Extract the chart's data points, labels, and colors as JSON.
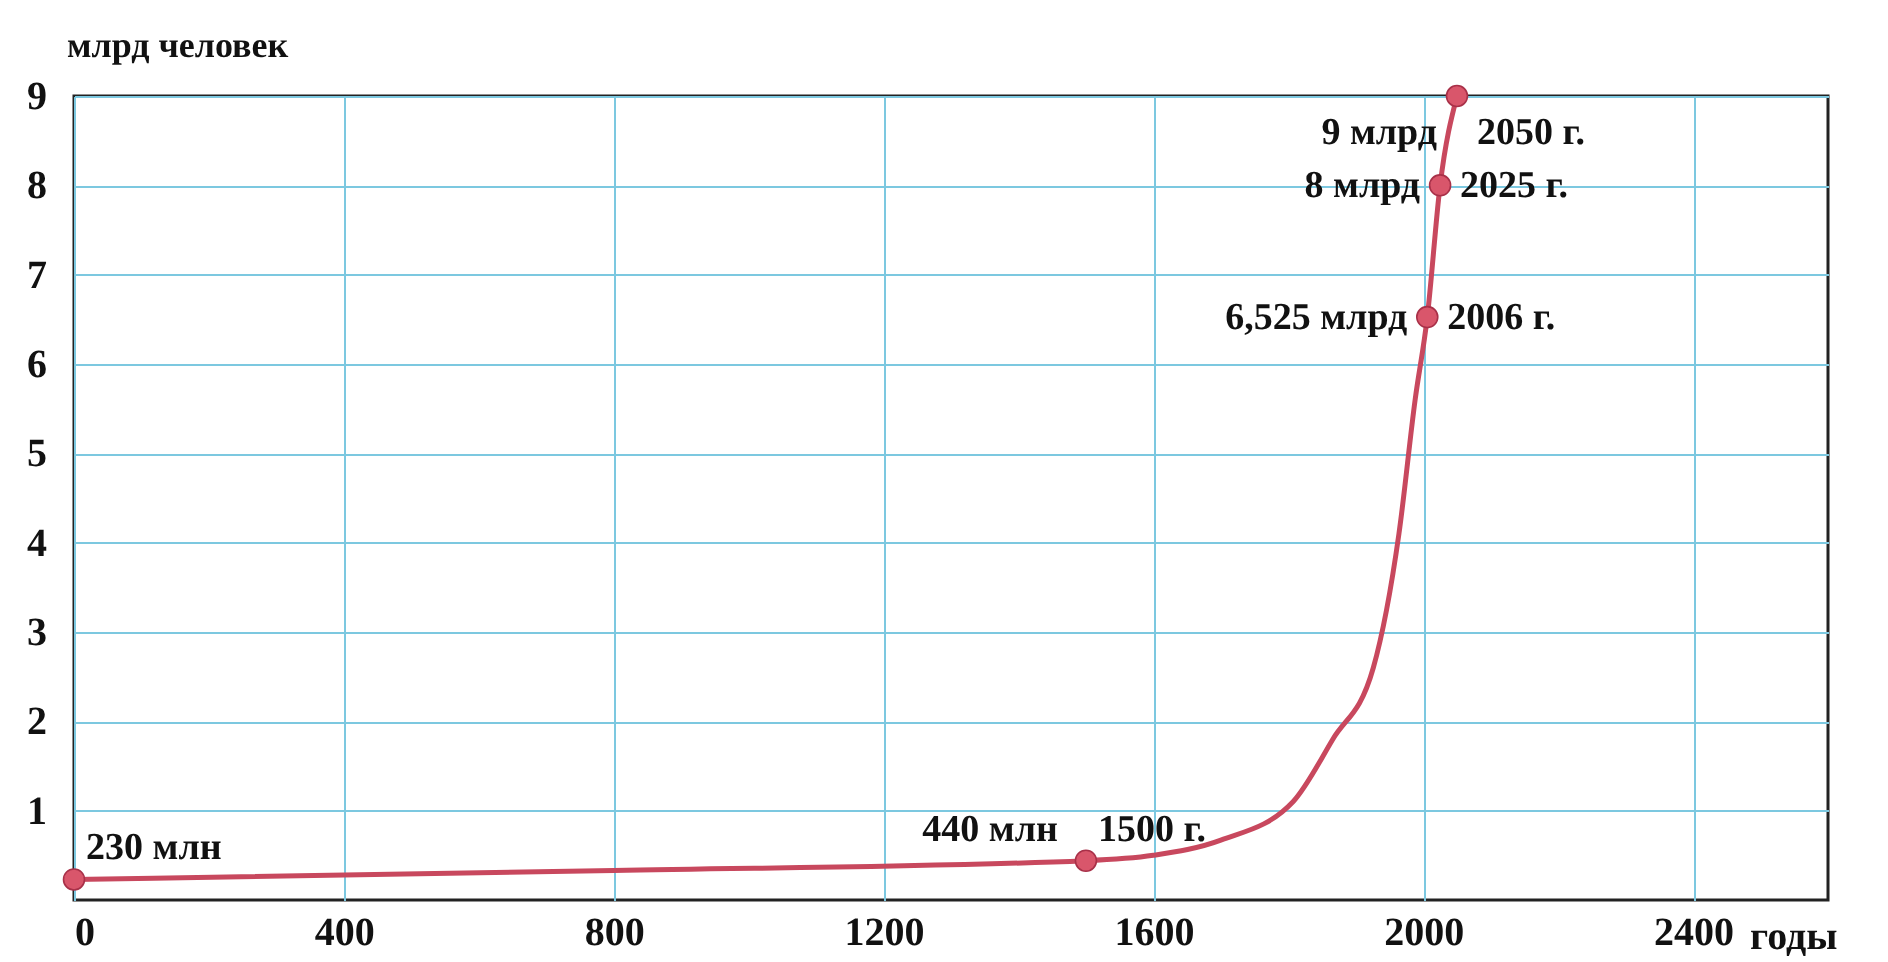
{
  "chart_data": {
    "type": "line",
    "xlabel": "годы",
    "ylabel": "млрд человек",
    "xlim": [
      0,
      2600
    ],
    "xticks": [
      0,
      400,
      800,
      1200,
      1600,
      2000,
      2400
    ],
    "ylim": [
      0,
      9
    ],
    "yticks": [
      1,
      2,
      3,
      4,
      5,
      6,
      7,
      8,
      9
    ],
    "grid": true,
    "series": [
      {
        "color": "#c8485e",
        "x": [
          0,
          800,
          1500,
          1600,
          1700,
          1807,
          1866,
          1926,
          1964,
          1988,
          2006,
          2025,
          2050
        ],
        "values": [
          0.23,
          0.33,
          0.44,
          0.5,
          0.67,
          1.1,
          1.8,
          2.6,
          4.1,
          5.6,
          6.525,
          8,
          9
        ]
      },
      {
        "type": "scatter",
        "marker": "circle",
        "color": "#d9566b",
        "x": [
          0,
          1500,
          2006,
          2025,
          2050
        ],
        "values": [
          0.23,
          0.44,
          6.525,
          8,
          9
        ]
      }
    ],
    "annotations": [
      {
        "text": "230 млн",
        "x": 0,
        "y": 0.23
      },
      {
        "text": "440 млн",
        "x": 1500,
        "y": 0.44
      },
      {
        "text": "1500 г.",
        "x": 1500,
        "y": 0.44
      },
      {
        "text": "6,525 млрд",
        "x": 2006,
        "y": 6.525
      },
      {
        "text": "2006 г.",
        "x": 2006,
        "y": 6.525
      },
      {
        "text": "8 млрд",
        "x": 2025,
        "y": 8
      },
      {
        "text": "2025 г.",
        "x": 2025,
        "y": 8
      },
      {
        "text": "9 млрд",
        "x": 2050,
        "y": 9
      },
      {
        "text": "2050 г.",
        "x": 2050,
        "y": 9
      }
    ]
  }
}
